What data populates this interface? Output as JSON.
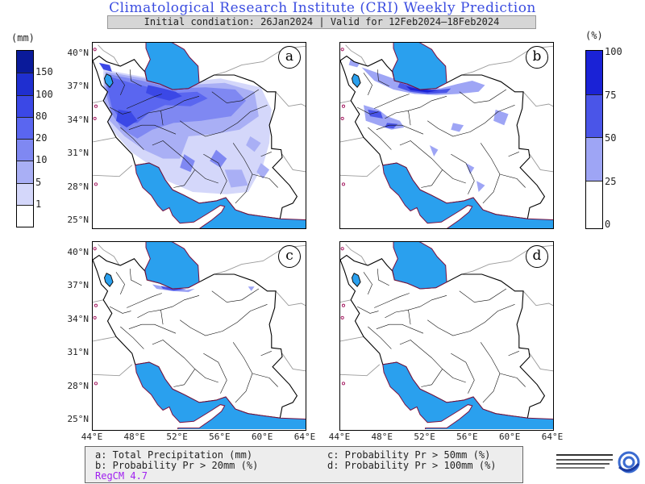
{
  "header": {
    "title": "Climatological Research Institute (CRI) Weekly Prediction",
    "subtitle": "Initial condiation: 26Jan2024 | Valid for 12Feb2024–18Feb2024"
  },
  "left_colorbar": {
    "unit": "(mm)",
    "ticks": [
      "150",
      "100",
      "80",
      "20",
      "10",
      "5",
      "1"
    ],
    "colors": [
      "#0a1a9a",
      "#1f2fd0",
      "#3b48e6",
      "#5a66f0",
      "#7f88f2",
      "#a9aff5",
      "#d4d7fa",
      "#ffffff"
    ]
  },
  "right_colorbar": {
    "unit": "(%)",
    "ticks": [
      "100",
      "75",
      "50",
      "25",
      "0"
    ],
    "colors": [
      "#1a22d6",
      "#4a55e8",
      "#9ea5f5",
      "#ffffff"
    ]
  },
  "axes": {
    "lat_ticks": [
      "40°N",
      "37°N",
      "34°N",
      "31°N",
      "28°N",
      "25°N"
    ],
    "lon_ticks": [
      "44°E",
      "48°E",
      "52°E",
      "56°E",
      "60°E",
      "64°E"
    ]
  },
  "panels": [
    {
      "id": "a"
    },
    {
      "id": "b"
    },
    {
      "id": "c"
    },
    {
      "id": "d"
    }
  ],
  "legend": {
    "a": "a: Total Precipitation (mm)",
    "b": "b: Probability Pr > 20mm (%)",
    "c": "c: Probability Pr > 50mm (%)",
    "d": "d: Probability Pr > 100mm (%)",
    "model": "RegCM 4.7"
  },
  "colors": {
    "title": "#3b4de0",
    "water": "#2aa0ee",
    "model_label": "#a020f0"
  }
}
